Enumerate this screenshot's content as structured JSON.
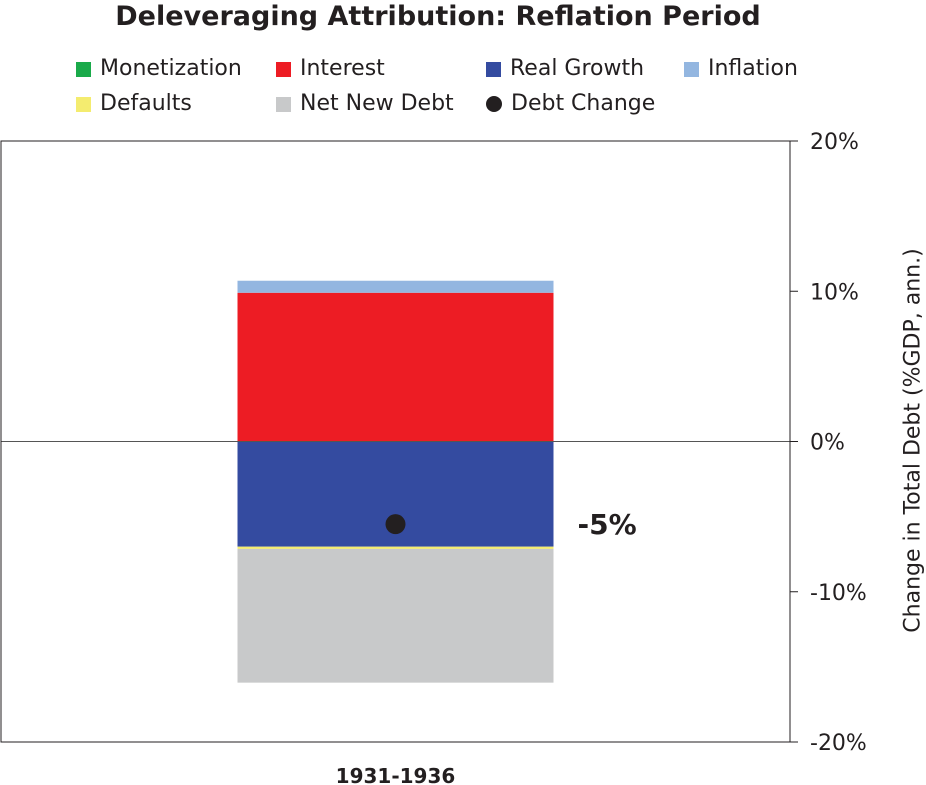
{
  "chart_data": {
    "type": "bar",
    "stacked": true,
    "title": "Deleveraging Attribution: Reflation Period",
    "xlabel": "",
    "ylabel": "Change in Total Debt (%GDP, ann.)",
    "ylim": [
      -20,
      20
    ],
    "yticks": [
      20,
      10,
      0,
      -10,
      -20
    ],
    "ytick_labels": [
      "20%",
      "10%",
      "0%",
      "-10%",
      "-20%"
    ],
    "grid": false,
    "categories": [
      "1931-1936"
    ],
    "series": [
      {
        "name": "Monetization",
        "color": "#1aaa4a",
        "values": [
          0.0
        ]
      },
      {
        "name": "Interest",
        "color": "#ed1c24",
        "values": [
          9.9
        ]
      },
      {
        "name": "Real Growth",
        "color": "#344ba0",
        "values": [
          -7.0
        ]
      },
      {
        "name": "Inflation",
        "color": "#93b6e0",
        "values": [
          0.8
        ]
      },
      {
        "name": "Defaults",
        "color": "#f4ec6f",
        "values": [
          -0.15
        ]
      },
      {
        "name": "Net New Debt",
        "color": "#c8c9ca",
        "values": [
          -8.9
        ]
      }
    ],
    "markers": [
      {
        "name": "Debt Change",
        "color": "#231f20",
        "values": [
          -5.5
        ]
      }
    ],
    "annotations": [
      {
        "text": "-5%",
        "category": "1931-1936",
        "y": -5.5
      }
    ],
    "legend_position": "top"
  }
}
